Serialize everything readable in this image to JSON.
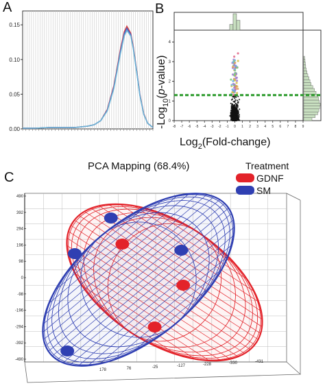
{
  "panels": {
    "a": "A",
    "b": "B",
    "c": "C"
  },
  "chart_data": [
    {
      "panel": "A",
      "type": "line",
      "y_ticks": [
        "0.15",
        "0.10",
        "0.05",
        "0.00"
      ],
      "ylim": [
        0,
        0.17
      ],
      "xlim": [
        0,
        100
      ],
      "grid": true,
      "series": [
        {
          "color": "#d64545",
          "x": [
            0,
            10,
            20,
            30,
            40,
            45,
            50,
            55,
            60,
            65,
            70,
            72,
            75,
            78,
            80,
            83,
            85,
            88,
            90,
            93,
            96,
            100
          ],
          "values": [
            0.001,
            0.001,
            0.002,
            0.002,
            0.002,
            0.003,
            0.004,
            0.006,
            0.012,
            0.028,
            0.062,
            0.082,
            0.114,
            0.14,
            0.148,
            0.138,
            0.118,
            0.078,
            0.05,
            0.022,
            0.008,
            0.002
          ]
        },
        {
          "color": "#4a5fc4",
          "x": [
            0,
            10,
            20,
            30,
            40,
            45,
            50,
            55,
            60,
            65,
            70,
            72,
            75,
            78,
            80,
            83,
            85,
            88,
            90,
            93,
            96,
            100
          ],
          "values": [
            0.001,
            0.001,
            0.002,
            0.002,
            0.002,
            0.003,
            0.004,
            0.006,
            0.012,
            0.027,
            0.06,
            0.08,
            0.111,
            0.137,
            0.145,
            0.136,
            0.116,
            0.077,
            0.049,
            0.021,
            0.008,
            0.002
          ]
        },
        {
          "color": "#6bb5d6",
          "x": [
            0,
            10,
            20,
            30,
            40,
            45,
            50,
            55,
            60,
            65,
            70,
            72,
            75,
            78,
            80,
            83,
            85,
            88,
            90,
            93,
            96,
            100
          ],
          "values": [
            0.001,
            0.001,
            0.002,
            0.002,
            0.002,
            0.003,
            0.004,
            0.006,
            0.012,
            0.026,
            0.058,
            0.078,
            0.108,
            0.134,
            0.142,
            0.134,
            0.115,
            0.076,
            0.048,
            0.021,
            0.008,
            0.002
          ]
        }
      ]
    },
    {
      "panel": "B",
      "type": "scatter",
      "xlabel_main": "Log",
      "xlabel_sub": "2",
      "xlabel_rest": "(Fold-change)",
      "ylabel_pre": "-Log",
      "ylabel_sub": "10",
      "ylabel_open": "(",
      "ylabel_ital": "p",
      "ylabel_rest": "-value)",
      "x_ticks": [
        "-8",
        "-7",
        "-6",
        "-5",
        "-4",
        "-3",
        "-2",
        "-1",
        "0",
        "1",
        "2",
        "3",
        "4",
        "5",
        "6",
        "7",
        "8",
        "9"
      ],
      "y_ticks": [
        "0",
        "1",
        "2",
        "3",
        "4"
      ],
      "xlim": [
        -8,
        9
      ],
      "ylim": [
        0,
        4.6
      ],
      "threshold": 1.3,
      "threshold_color": "#2a9a2a",
      "top_histogram": [
        0.35,
        1.0,
        0.6
      ],
      "right_histogram": [
        0.05,
        0.08,
        0.1,
        0.12,
        0.15,
        0.2,
        0.25,
        0.32,
        0.38,
        0.45,
        0.55,
        0.65,
        0.75,
        0.85,
        0.9,
        0.95,
        1.0,
        0.97,
        0.92,
        0.85,
        0.7,
        0.5
      ]
    },
    {
      "panel": "C",
      "type": "scatter3d",
      "title": "PCA Mapping (68.4%)",
      "legend_title": "Treatment",
      "legend": [
        {
          "name": "GDNF",
          "color": "#e3232a"
        },
        {
          "name": "SM",
          "color": "#2f3fb2"
        }
      ],
      "z_ticks": [
        "490",
        "392",
        "294",
        "196",
        "98",
        "0",
        "-98",
        "-196",
        "-294",
        "-392",
        "-490"
      ],
      "x_ticks": [
        "178",
        "76",
        "-25",
        "-127",
        "-228",
        "-330",
        "-431"
      ],
      "series": [
        {
          "name": "GDNF",
          "points": [
            {
              "x": -160,
              "y": 120,
              "z": 160
            },
            {
              "x": 120,
              "y": -80,
              "z": -40
            },
            {
              "x": 60,
              "y": -150,
              "z": -210
            }
          ]
        },
        {
          "name": "SM",
          "points": [
            {
              "x": -170,
              "y": 60,
              "z": 240
            },
            {
              "x": 40,
              "y": 90,
              "z": 130
            },
            {
              "x": -250,
              "y": -20,
              "z": 90
            },
            {
              "x": -230,
              "y": -120,
              "z": -290
            }
          ]
        }
      ]
    }
  ]
}
